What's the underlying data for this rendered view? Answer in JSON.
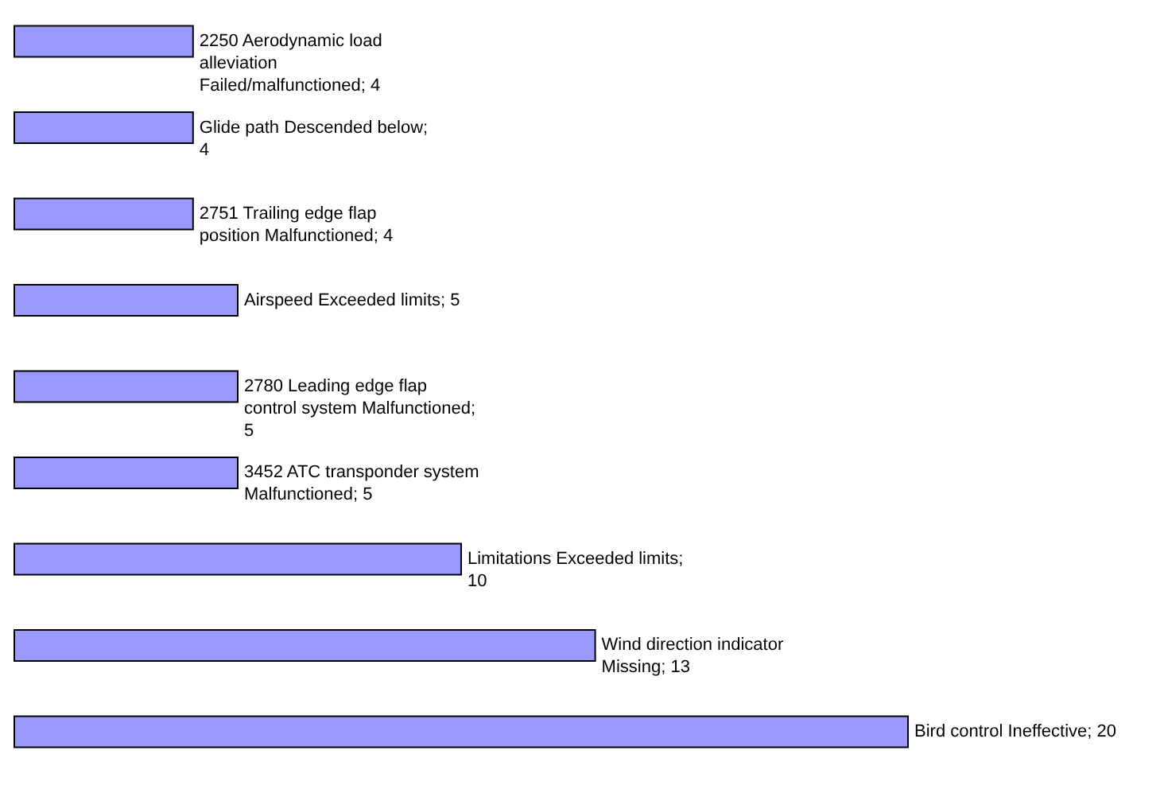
{
  "chart_data": {
    "type": "bar",
    "orientation": "horizontal",
    "categories": [
      null,
      null,
      null,
      null,
      null,
      null,
      null,
      null,
      null
    ],
    "values": [
      4,
      4,
      4,
      5,
      5,
      5,
      10,
      13,
      20
    ],
    "value_labels": [
      "2250 Aerodynamic load alleviation Failed/malfunctioned; 4",
      "Glide path Descended below; 4",
      "2751 Trailing edge flap position Malfunctioned; 4",
      "Airspeed Exceeded limits; 5",
      "2780 Leading edge flap control system Malfunctioned; 5",
      "3452 ATC transponder system Malfunctioned; 5",
      "Limitations Exceeded limits; 10",
      "Wind direction indicator Missing; 13",
      "Bird control Ineffective; 20"
    ],
    "color": "#9999ff"
  }
}
